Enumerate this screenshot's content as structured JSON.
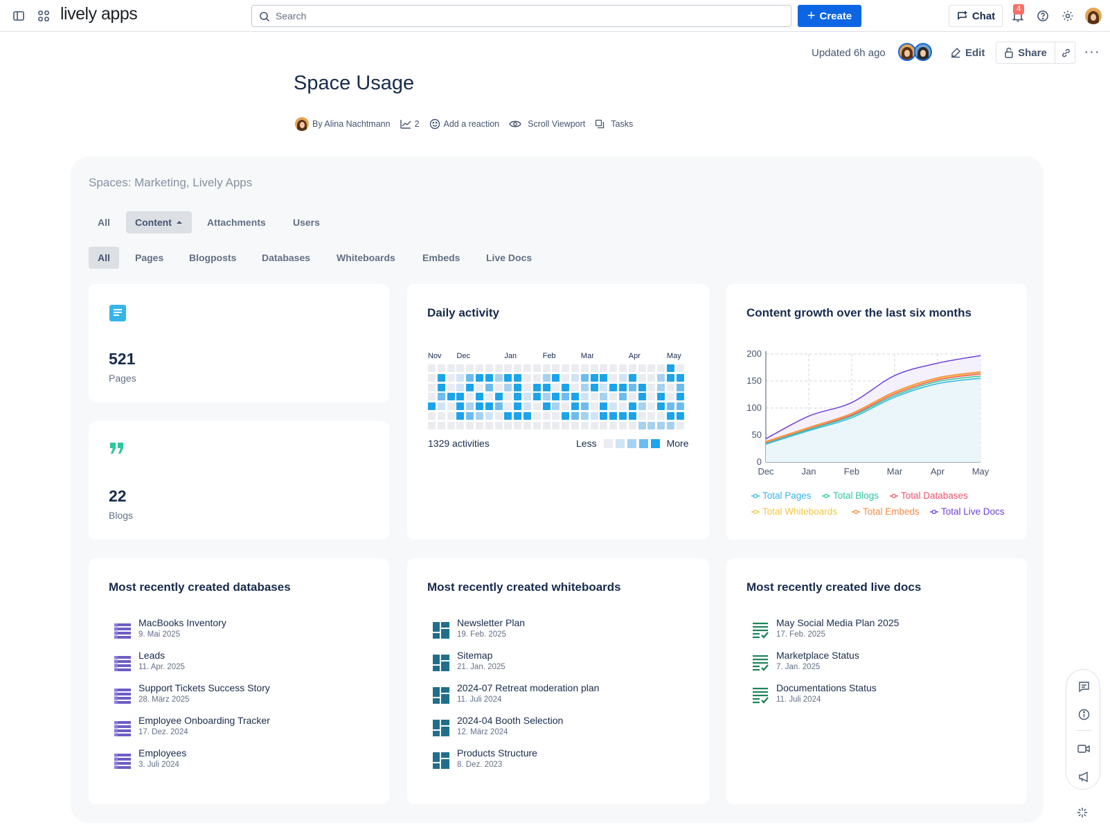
{
  "topbar": {
    "logo": "lively apps",
    "search_placeholder": "Search",
    "create_label": "Create",
    "chat_label": "Chat",
    "notifications_count": "4"
  },
  "page": {
    "updated": "Updated 6h ago",
    "edit_label": "Edit",
    "share_label": "Share",
    "title": "Space Usage",
    "byline": {
      "author": "By Alina Nachtmann",
      "analytics_count": "2",
      "reaction": "Add a reaction",
      "viewport": "Scroll Viewport",
      "tasks": "Tasks"
    }
  },
  "panel": {
    "title": "Spaces: Marketing, Lively Apps",
    "tabs": [
      "All",
      "Content",
      "Attachments",
      "Users"
    ],
    "subtabs": [
      "All",
      "Pages",
      "Blogposts",
      "Databases",
      "Whiteboards",
      "Embeds",
      "Live Docs"
    ]
  },
  "stats": {
    "pages": {
      "value": "521",
      "label": "Pages"
    },
    "blogs": {
      "value": "22",
      "label": "Blogs"
    }
  },
  "activity": {
    "title": "Daily activity",
    "months": [
      "Nov",
      "Dec",
      "Jan",
      "Feb",
      "Mar",
      "Apr",
      "May"
    ],
    "total": "1329 activities",
    "less": "Less",
    "more": "More"
  },
  "chart_data": {
    "type": "area",
    "title": "Content growth over the last six months",
    "x": [
      "Dec",
      "Jan",
      "Feb",
      "Mar",
      "Apr",
      "May"
    ],
    "ylim": [
      0,
      200
    ],
    "yticks": [
      "0",
      "50",
      "100",
      "150",
      "200"
    ],
    "series": [
      {
        "name": "Total Pages",
        "color": "#36b5e8",
        "values": [
          33,
          58,
          82,
          120,
          145,
          155
        ]
      },
      {
        "name": "Total Blogs",
        "color": "#2ec7a0",
        "values": [
          35,
          60,
          85,
          123,
          149,
          159
        ]
      },
      {
        "name": "Total Databases",
        "color": "#f0506e",
        "values": [
          36,
          62,
          87,
          126,
          152,
          163
        ]
      },
      {
        "name": "Total Whiteboards",
        "color": "#f5c542",
        "values": [
          37,
          63,
          89,
          128,
          154,
          165
        ]
      },
      {
        "name": "Total Embeds",
        "color": "#f58a42",
        "values": [
          38,
          64,
          90,
          130,
          156,
          167
        ]
      },
      {
        "name": "Total Live Docs",
        "color": "#6d3fd6",
        "values": [
          43,
          85,
          110,
          160,
          183,
          197
        ]
      }
    ]
  },
  "databases": {
    "title": "Most recently created databases",
    "items": [
      {
        "name": "MacBooks Inventory",
        "date": "9. Mai 2025"
      },
      {
        "name": "Leads",
        "date": "11. Apr. 2025"
      },
      {
        "name": "Support Tickets Success Story",
        "date": "28. März 2025"
      },
      {
        "name": "Employee Onboarding Tracker",
        "date": "17. Dez. 2024"
      },
      {
        "name": "Employees",
        "date": "3. Juli 2024"
      }
    ]
  },
  "whiteboards": {
    "title": "Most recently created whiteboards",
    "items": [
      {
        "name": "Newsletter Plan",
        "date": "19. Feb. 2025"
      },
      {
        "name": "Sitemap",
        "date": "21. Jan. 2025"
      },
      {
        "name": "2024-07 Retreat moderation plan",
        "date": "11. Juli 2024"
      },
      {
        "name": "2024-04 Booth Selection",
        "date": "12. März 2024"
      },
      {
        "name": "Products Structure",
        "date": "8. Dez. 2023"
      }
    ]
  },
  "livedocs": {
    "title": "Most recently created live docs",
    "items": [
      {
        "name": "May Social Media Plan 2025",
        "date": "17. Feb. 2025"
      },
      {
        "name": "Marketplace Status",
        "date": "7. Jan. 2025"
      },
      {
        "name": "Documentations Status",
        "date": "11. Juli 2024"
      }
    ]
  }
}
